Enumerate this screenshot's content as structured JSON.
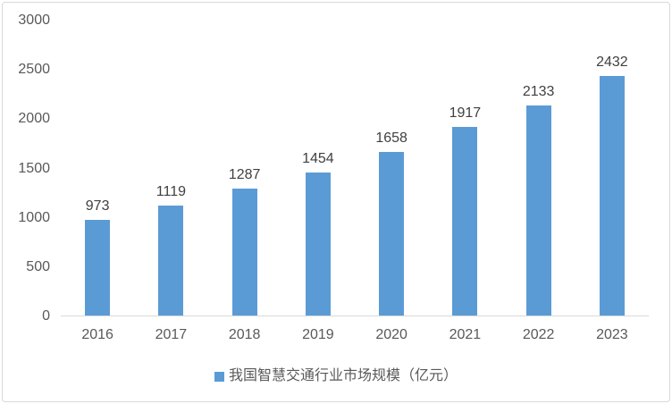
{
  "chart_data": {
    "type": "bar",
    "categories": [
      "2016",
      "2017",
      "2018",
      "2019",
      "2020",
      "2021",
      "2022",
      "2023"
    ],
    "values": [
      973,
      1119,
      1287,
      1454,
      1658,
      1917,
      2133,
      2432
    ],
    "series_name": "我国智慧交通行业市场规模（亿元）",
    "title": "",
    "xlabel": "",
    "ylabel": "",
    "ylim": [
      0,
      3000
    ],
    "yticks": [
      0,
      500,
      1000,
      1500,
      2000,
      2500,
      3000
    ],
    "grid": false,
    "legend_position": "bottom",
    "bar_color": "#5B9BD5",
    "value_label_color": "#404040",
    "axis_text_color": "#595959",
    "axis_line_color": "#D9D9D9"
  },
  "legend": {
    "label": "我国智慧交通行业市场规模（亿元）",
    "marker_color": "#5B9BD5"
  }
}
